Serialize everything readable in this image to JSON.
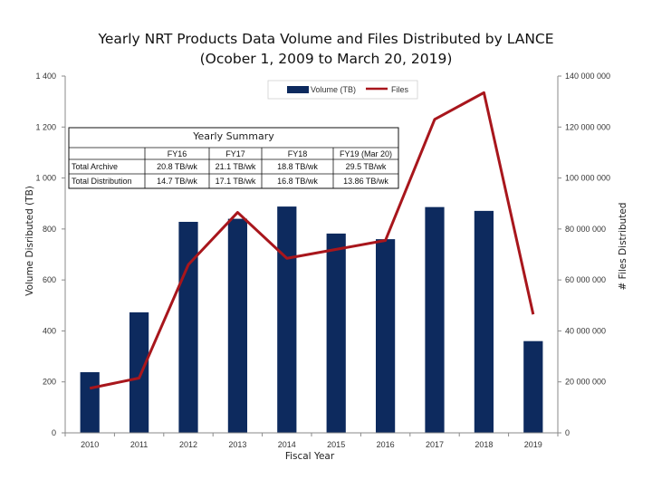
{
  "chart_data": {
    "type": "bar+line",
    "title_line1": "Yearly NRT Products Data Volume and Files Distributed by LANCE",
    "title_line2": "(Ocober 1, 2009 to March 20, 2019)",
    "xlabel": "Fiscal Year",
    "ylabel_left": "Volume Disributed (TB)",
    "ylabel_right": "# Files Distributed",
    "categories": [
      "2010",
      "2011",
      "2012",
      "2013",
      "2014",
      "2015",
      "2016",
      "2017",
      "2018",
      "2019"
    ],
    "ylim_left": [
      0,
      1400
    ],
    "yticks_left": [
      {
        "value": 0,
        "label": "0"
      },
      {
        "value": 200,
        "label": "200"
      },
      {
        "value": 400,
        "label": "400"
      },
      {
        "value": 600,
        "label": "600"
      },
      {
        "value": 800,
        "label": "800"
      },
      {
        "value": 1000,
        "label": "1 000"
      },
      {
        "value": 1200,
        "label": "1 200"
      },
      {
        "value": 1400,
        "label": "1 400"
      }
    ],
    "ylim_right": [
      0,
      140000000
    ],
    "yticks_right": [
      {
        "value": 0,
        "label": "0"
      },
      {
        "value": 20000000,
        "label": "20 000 000"
      },
      {
        "value": 40000000,
        "label": "40 000 000"
      },
      {
        "value": 60000000,
        "label": "60 000 000"
      },
      {
        "value": 80000000,
        "label": "80 000 000"
      },
      {
        "value": 100000000,
        "label": "100 000 000"
      },
      {
        "value": 120000000,
        "label": "120 000 000"
      },
      {
        "value": 140000000,
        "label": "140 000 000"
      }
    ],
    "series": [
      {
        "name": "Volume (TB)",
        "type": "bar",
        "axis": "left",
        "color": "#0d2a5e",
        "values": [
          238,
          473,
          828,
          840,
          888,
          782,
          760,
          886,
          871,
          360
        ]
      },
      {
        "name": "Files",
        "type": "line",
        "axis": "right",
        "color": "#a8161c",
        "values": [
          17500000,
          21500000,
          66000000,
          86500000,
          68500000,
          72000000,
          75500000,
          123000000,
          133500000,
          46500000
        ]
      }
    ],
    "legend": "top-center",
    "grid": false,
    "summary_table": {
      "title": "Yearly Summary",
      "columns": [
        "FY16",
        "FY17",
        "FY18",
        "FY19 (Mar 20)"
      ],
      "rows": [
        {
          "label": "Total Archive",
          "cells": [
            "20.8 TB/wk",
            "21.1 TB/wk",
            "18.8 TB/wk",
            "29.5 TB/wk"
          ]
        },
        {
          "label": "Total Distribution",
          "cells": [
            "14.7 TB/wk",
            "17.1 TB/wk",
            "16.8 TB/wk",
            "13.86 TB/wk"
          ]
        }
      ]
    }
  }
}
